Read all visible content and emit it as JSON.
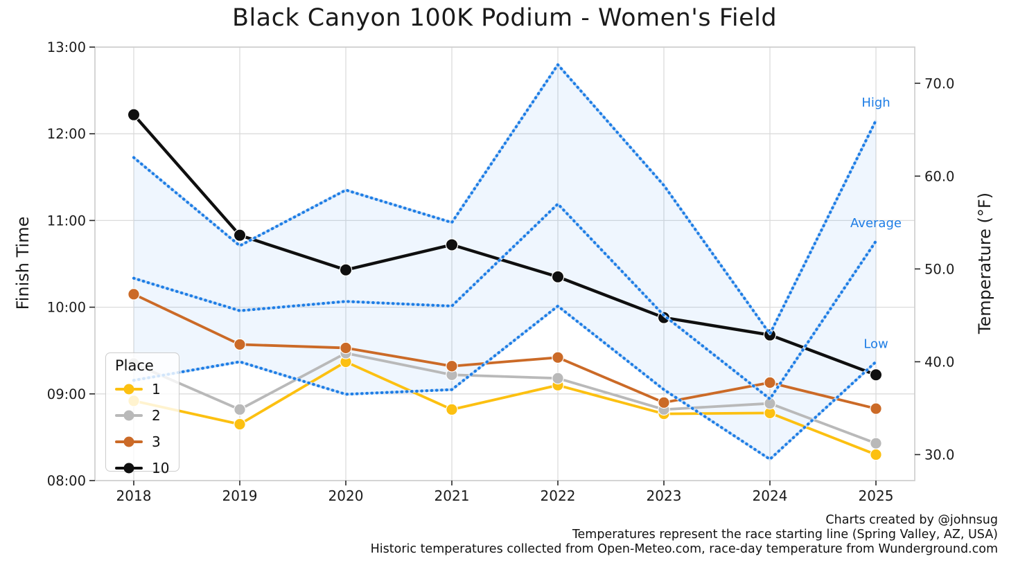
{
  "title": "Black Canyon 100K Podium - Women's Field",
  "chart_data": {
    "type": "line",
    "x": [
      2018,
      2019,
      2020,
      2021,
      2022,
      2023,
      2024,
      2025
    ],
    "x_tick_labels": [
      "2018",
      "2019",
      "2020",
      "2021",
      "2022",
      "2023",
      "2024",
      "2025"
    ],
    "left_axis": {
      "label": "Finish Time",
      "tick_labels": [
        "13:00",
        "12:00",
        "11:00",
        "10:00",
        "09:00",
        "08:00"
      ],
      "tick_values": [
        13,
        12,
        11,
        10,
        9,
        8
      ],
      "range": [
        8,
        13
      ]
    },
    "right_axis": {
      "label": "Temperature (°F)",
      "tick_labels": [
        "70.0",
        "60.0",
        "50.0",
        "40.0",
        "30.0"
      ],
      "tick_values": [
        70,
        60,
        50,
        40,
        30
      ],
      "range": [
        27.2,
        73.9
      ]
    },
    "series": [
      {
        "name": "1",
        "color": "#FCC011",
        "axis": "left",
        "values_hours": [
          8.92,
          8.65,
          9.37,
          8.82,
          9.1,
          8.77,
          8.78,
          8.3
        ],
        "values_hhmm": [
          "08:55",
          "08:39",
          "09:22",
          "08:49",
          "09:06",
          "08:46",
          "08:47",
          "08:18"
        ]
      },
      {
        "name": "2",
        "color": "#B9B9B9",
        "axis": "left",
        "values_hours": [
          9.35,
          8.82,
          9.47,
          9.22,
          9.18,
          8.82,
          8.89,
          8.43
        ],
        "values_hhmm": [
          "09:21",
          "08:49",
          "09:28",
          "09:13",
          "09:11",
          "08:49",
          "08:53",
          "08:26"
        ]
      },
      {
        "name": "3",
        "color": "#CB6A27",
        "axis": "left",
        "values_hours": [
          10.15,
          9.57,
          9.53,
          9.32,
          9.42,
          8.9,
          9.13,
          8.83
        ],
        "values_hhmm": [
          "10:09",
          "09:34",
          "09:32",
          "09:19",
          "09:25",
          "08:54",
          "09:08",
          "08:50"
        ]
      },
      {
        "name": "10",
        "color": "#0F0F0F",
        "axis": "left",
        "values_hours": [
          12.22,
          10.83,
          10.43,
          10.72,
          10.35,
          9.88,
          9.68,
          9.22
        ],
        "values_hhmm": [
          "12:13",
          "10:50",
          "10:26",
          "10:43",
          "10:21",
          "09:53",
          "09:41",
          "09:13"
        ]
      }
    ],
    "temperature_series": [
      {
        "name": "High",
        "label": "High",
        "style": "dotted",
        "axis": "right",
        "values": [
          62,
          52.5,
          58.5,
          55,
          72,
          59,
          43,
          66
        ]
      },
      {
        "name": "Average",
        "label": "Average",
        "style": "dotted",
        "axis": "right",
        "values": [
          49,
          45.5,
          46.5,
          46,
          57,
          45,
          36,
          53
        ]
      },
      {
        "name": "Low",
        "label": "Low",
        "style": "dotted",
        "axis": "right",
        "values": [
          38,
          40,
          36.5,
          37,
          46,
          37,
          29.5,
          40
        ]
      }
    ],
    "band": {
      "between": [
        "High",
        "Low"
      ],
      "fill": "#2E86F0",
      "opacity": 0.08
    },
    "grid": true,
    "legend_position": "lower left"
  },
  "legend": {
    "title": "Place",
    "items": [
      {
        "label": "1",
        "color": "#FCC011"
      },
      {
        "label": "2",
        "color": "#B9B9B9"
      },
      {
        "label": "3",
        "color": "#CB6A27"
      },
      {
        "label": "10",
        "color": "#0F0F0F"
      }
    ]
  },
  "footer": {
    "lines": [
      "Charts created by @johnsug",
      "Temperatures represent the race starting line (Spring Valley, AZ, USA)",
      "Historic temperatures collected from Open-Meteo.com, race-day temperature from Wunderground.com"
    ]
  },
  "colors": {
    "temperature_blue": "#1E7DE5",
    "temperature_halo": "#C9DFF6",
    "grid_line": "#DBDBDB",
    "spine": "#CBCBCB",
    "tick_mark": "#262626",
    "text": "#1a1a1a"
  }
}
